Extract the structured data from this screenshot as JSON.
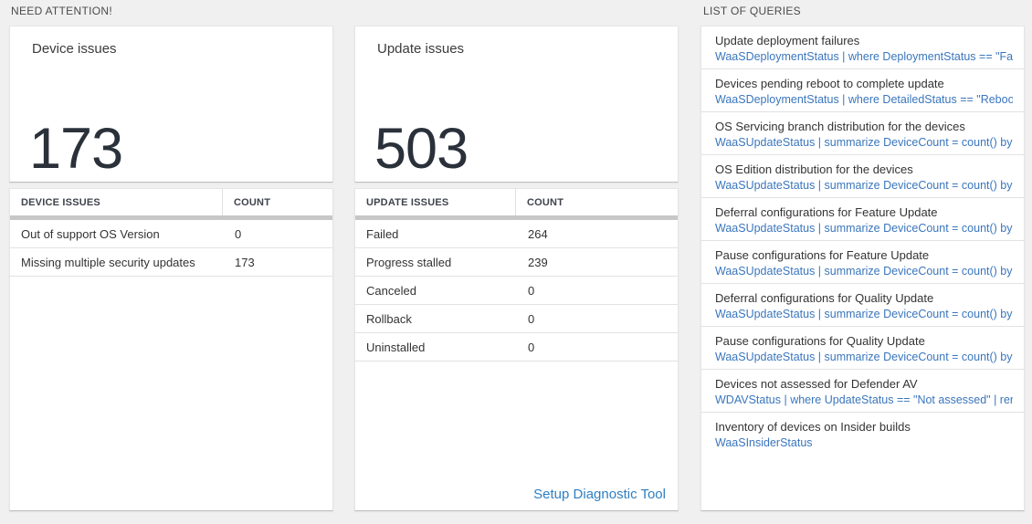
{
  "sections": {
    "need_attention": "NEED ATTENTION!",
    "list_of_queries": "LIST OF QUERIES"
  },
  "device_card": {
    "title": "Device issues",
    "count": "173",
    "table": {
      "headers": [
        "DEVICE ISSUES",
        "COUNT"
      ],
      "rows": [
        {
          "label": "Out of support OS Version",
          "count": "0"
        },
        {
          "label": "Missing multiple security updates",
          "count": "173"
        }
      ]
    }
  },
  "update_card": {
    "title": "Update issues",
    "count": "503",
    "table": {
      "headers": [
        "UPDATE ISSUES",
        "COUNT"
      ],
      "rows": [
        {
          "label": "Failed",
          "count": "264"
        },
        {
          "label": "Progress stalled",
          "count": "239"
        },
        {
          "label": "Canceled",
          "count": "0"
        },
        {
          "label": "Rollback",
          "count": "0"
        },
        {
          "label": "Uninstalled",
          "count": "0"
        }
      ]
    },
    "link": "Setup Diagnostic Tool"
  },
  "queries": {
    "items": [
      {
        "title": "Update deployment failures",
        "query": "WaaSDeploymentStatus | where DeploymentStatus == \"Failed\" |..."
      },
      {
        "title": "Devices pending reboot to complete update",
        "query": "WaaSDeploymentStatus | where DetailedStatus == \"Reboot pend..."
      },
      {
        "title": "OS Servicing branch distribution for the devices",
        "query": "WaaSUpdateStatus | summarize DeviceCount = count() by OSSer..."
      },
      {
        "title": "OS Edition distribution for the devices",
        "query": "WaaSUpdateStatus | summarize DeviceCount = count() by OSEdit..."
      },
      {
        "title": "Deferral configurations for Feature Update",
        "query": "WaaSUpdateStatus | summarize DeviceCount = count() by Featur..."
      },
      {
        "title": "Pause configurations for Feature Update",
        "query": "WaaSUpdateStatus | summarize DeviceCount = count() by Featur..."
      },
      {
        "title": "Deferral configurations for Quality Update",
        "query": "WaaSUpdateStatus | summarize DeviceCount = count() by Qualit..."
      },
      {
        "title": "Pause configurations for Quality Update",
        "query": "WaaSUpdateStatus | summarize DeviceCount = count() by Qualit..."
      },
      {
        "title": "Devices not assessed for Defender AV",
        "query": "WDAVStatus | where UpdateStatus == \"Not assessed\" | render ta..."
      },
      {
        "title": "Inventory of devices on Insider builds",
        "query": "WaaSInsiderStatus"
      }
    ]
  },
  "colors": {
    "query_blue": "#3a76bd",
    "link_blue": "#2e7fc2",
    "page_background": "#f0f0f0",
    "header_bar_gray": "#c7c7c7"
  }
}
